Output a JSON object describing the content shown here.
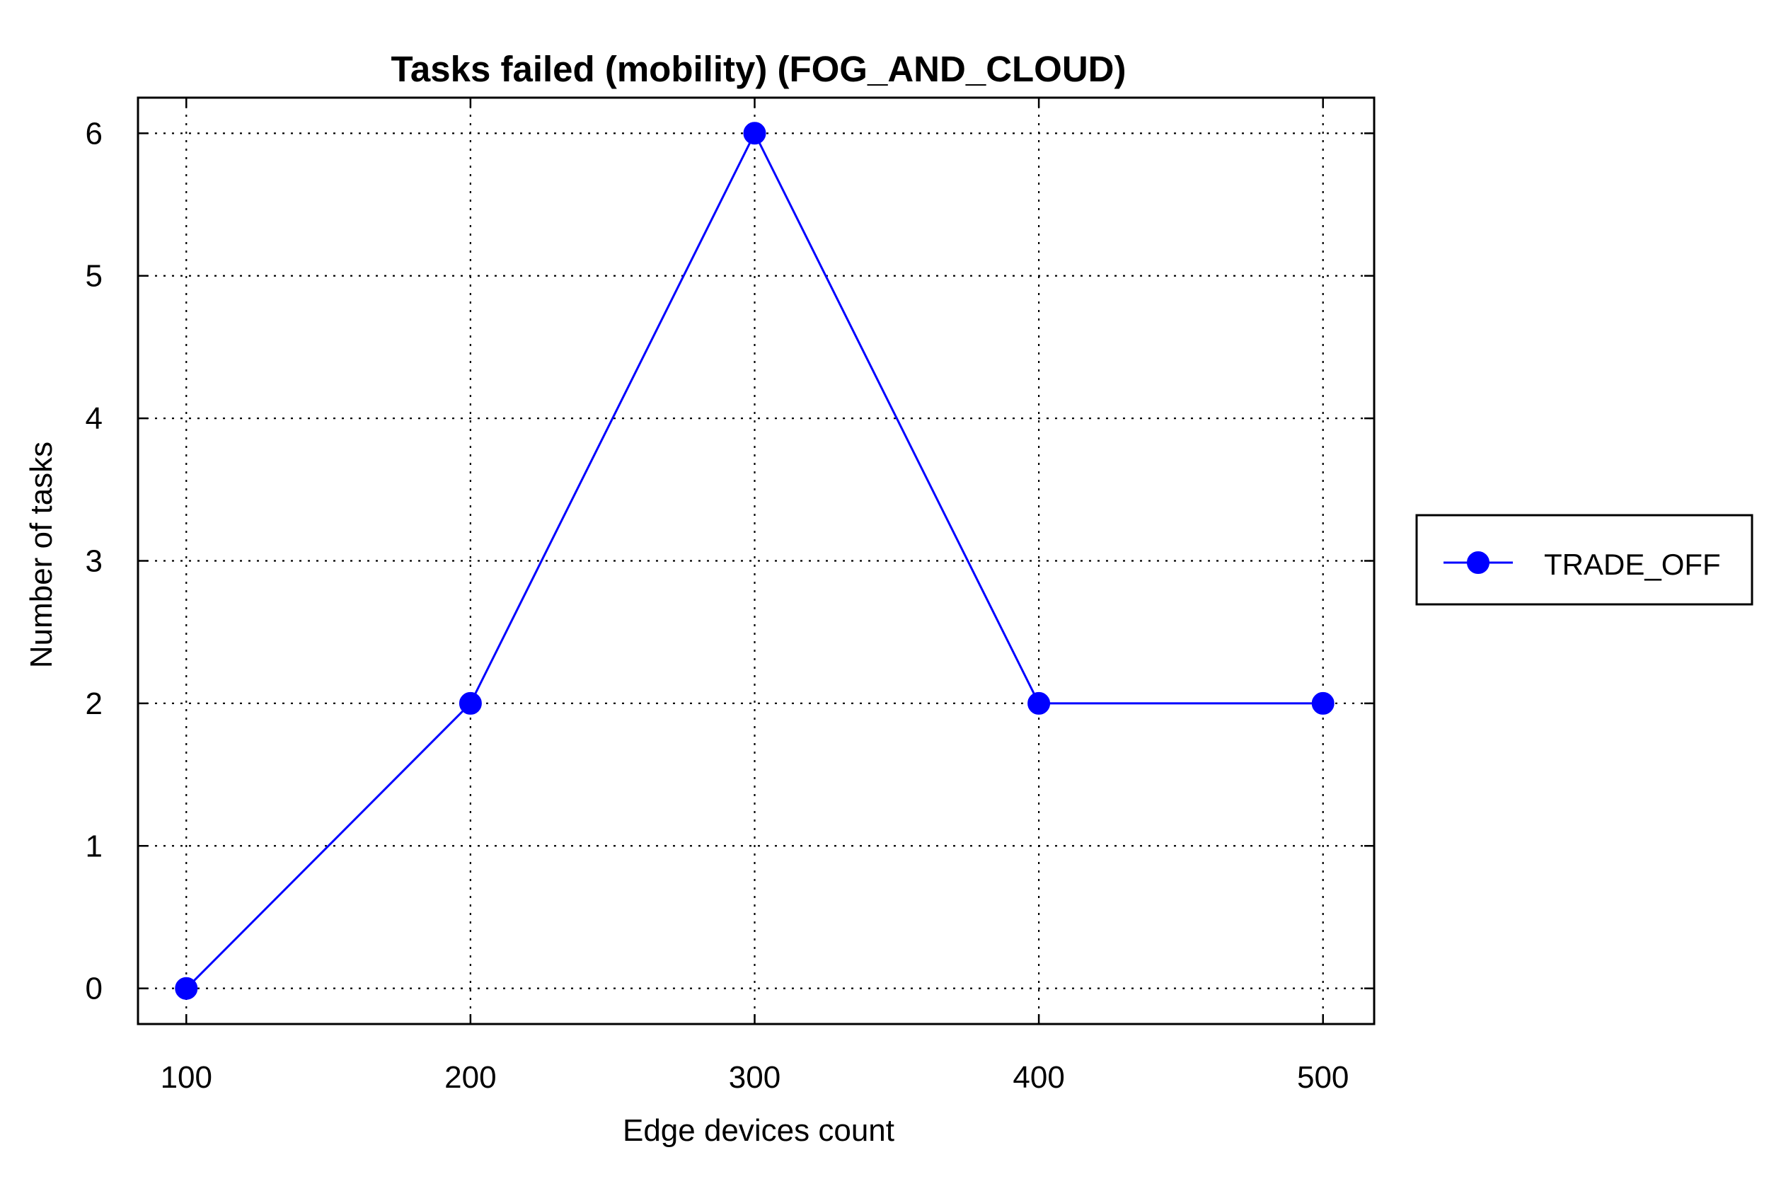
{
  "chart_data": {
    "type": "line",
    "title": "Tasks failed (mobility) (FOG_AND_CLOUD)",
    "xlabel": "Edge devices count",
    "ylabel": "Number of tasks",
    "x": [
      100,
      200,
      300,
      400,
      500
    ],
    "xticks": [
      "100",
      "200",
      "300",
      "400",
      "500"
    ],
    "yticks": [
      "0",
      "1",
      "2",
      "3",
      "4",
      "5",
      "6"
    ],
    "xlim": [
      83,
      518
    ],
    "ylim": [
      -0.25,
      6.25
    ],
    "grid": true,
    "legend_position": "outside-right",
    "series": [
      {
        "name": "TRADE_OFF",
        "color": "#0000ff",
        "marker": "circle",
        "values": [
          0,
          2,
          6,
          2,
          2
        ]
      }
    ]
  }
}
